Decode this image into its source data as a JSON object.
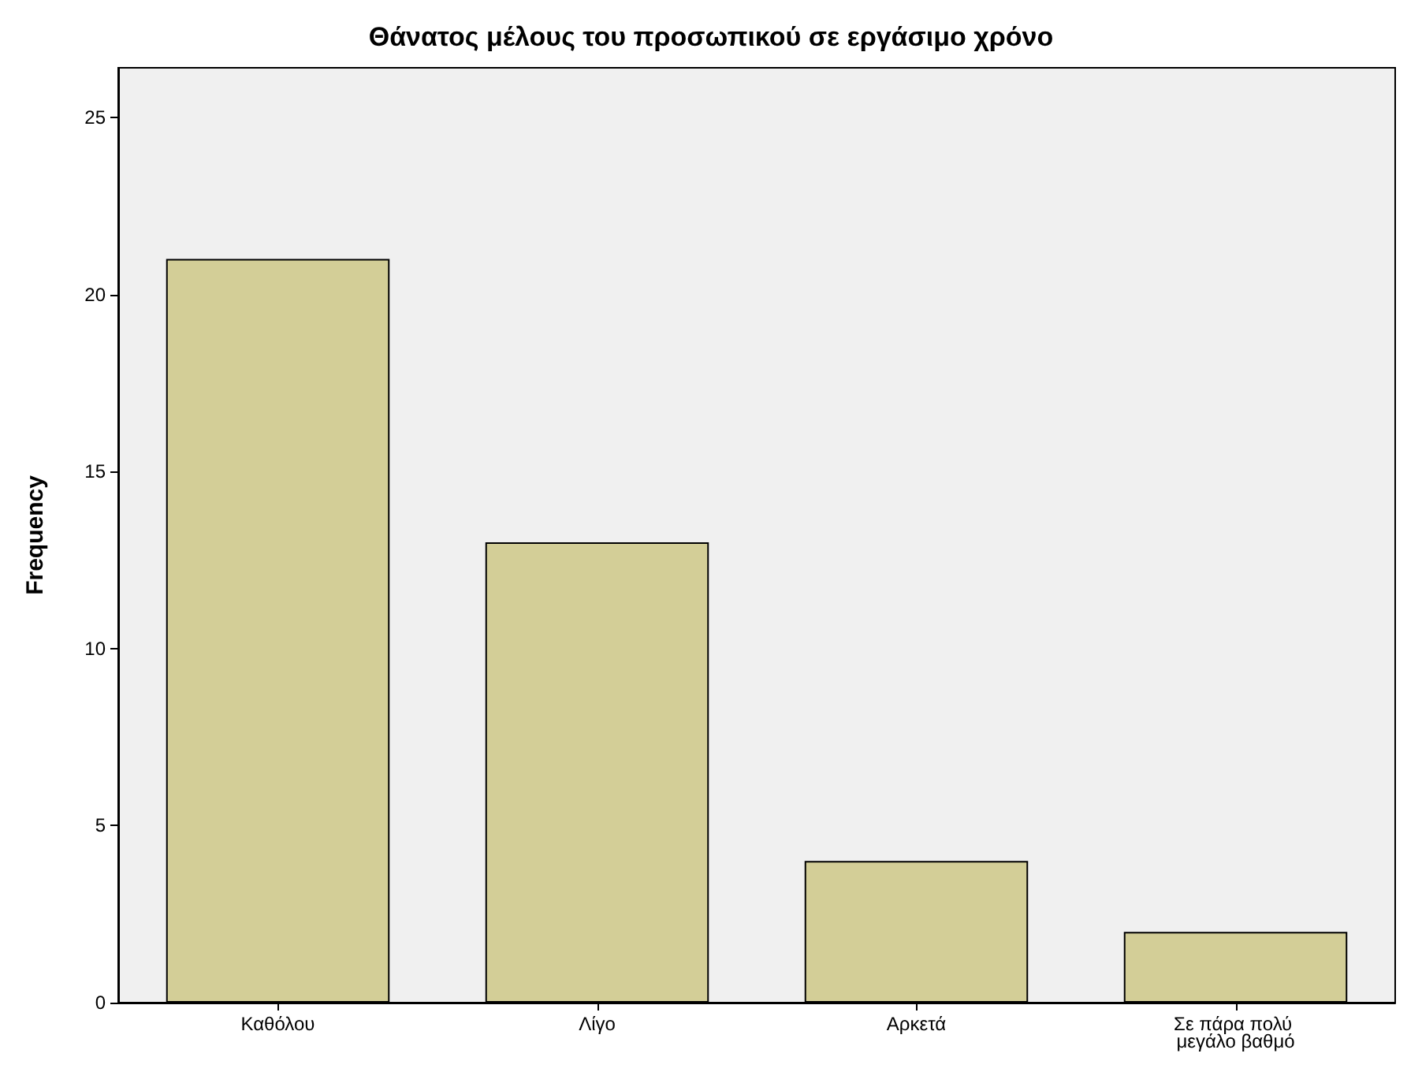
{
  "chart_data": {
    "type": "bar",
    "title": "Θάνατος μέλους του προσωπικού σε εργάσιμο χρόνο",
    "ylabel": "Frequency",
    "categories": [
      "Καθόλου",
      "Λίγο",
      "Αρκετά",
      "Σε πάρα πολύ μεγάλο βαθμό"
    ],
    "values": [
      21,
      13,
      4,
      2
    ],
    "color": "#d3ce97",
    "ylim": [
      0,
      26.4
    ],
    "yticks": [
      0,
      5,
      10,
      15,
      20,
      25
    ],
    "grid": false
  }
}
